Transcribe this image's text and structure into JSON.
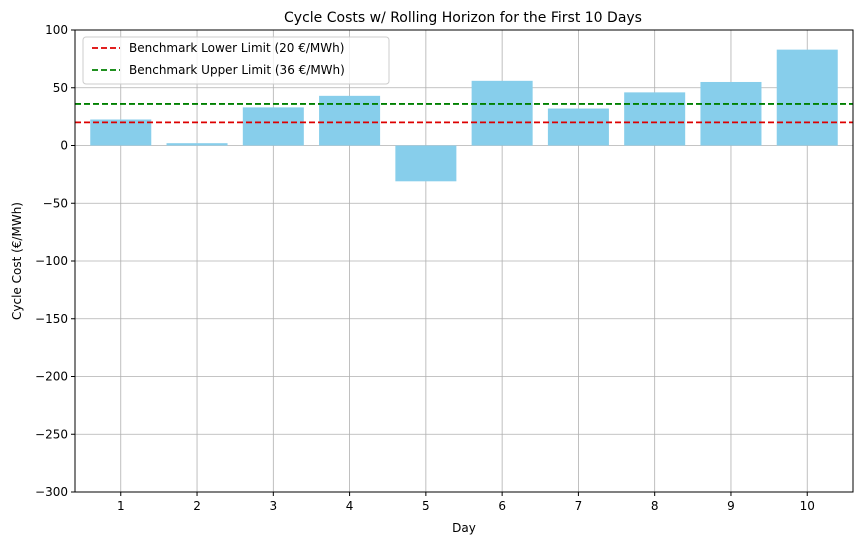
{
  "chart_data": {
    "type": "bar",
    "title": "Cycle Costs w/ Rolling Horizon for the First 10 Days",
    "xlabel": "Day",
    "ylabel": "Cycle Cost (€/MWh)",
    "categories": [
      "1",
      "2",
      "3",
      "4",
      "5",
      "6",
      "7",
      "8",
      "9",
      "10"
    ],
    "values": [
      22.5,
      2,
      33,
      43,
      -31,
      56,
      32,
      46,
      55,
      83
    ],
    "ylim": [
      -300,
      100
    ],
    "yticks": [
      -300,
      -250,
      -200,
      -150,
      -100,
      -50,
      0,
      50,
      100
    ],
    "ytick_labels": [
      "−300",
      "−250",
      "−200",
      "−150",
      "−100",
      "−50",
      "0",
      "50",
      "100"
    ],
    "bar_color": "#87ceeb",
    "grid": true,
    "legend_position": "top-left",
    "reference_lines": [
      {
        "label": "Benchmark Lower Limit (20 €/MWh)",
        "value": 20,
        "color": "#dd0000",
        "style": "dashed"
      },
      {
        "label": "Benchmark Upper Limit (36 €/MWh)",
        "value": 36,
        "color": "#008000",
        "style": "dashed"
      }
    ]
  }
}
